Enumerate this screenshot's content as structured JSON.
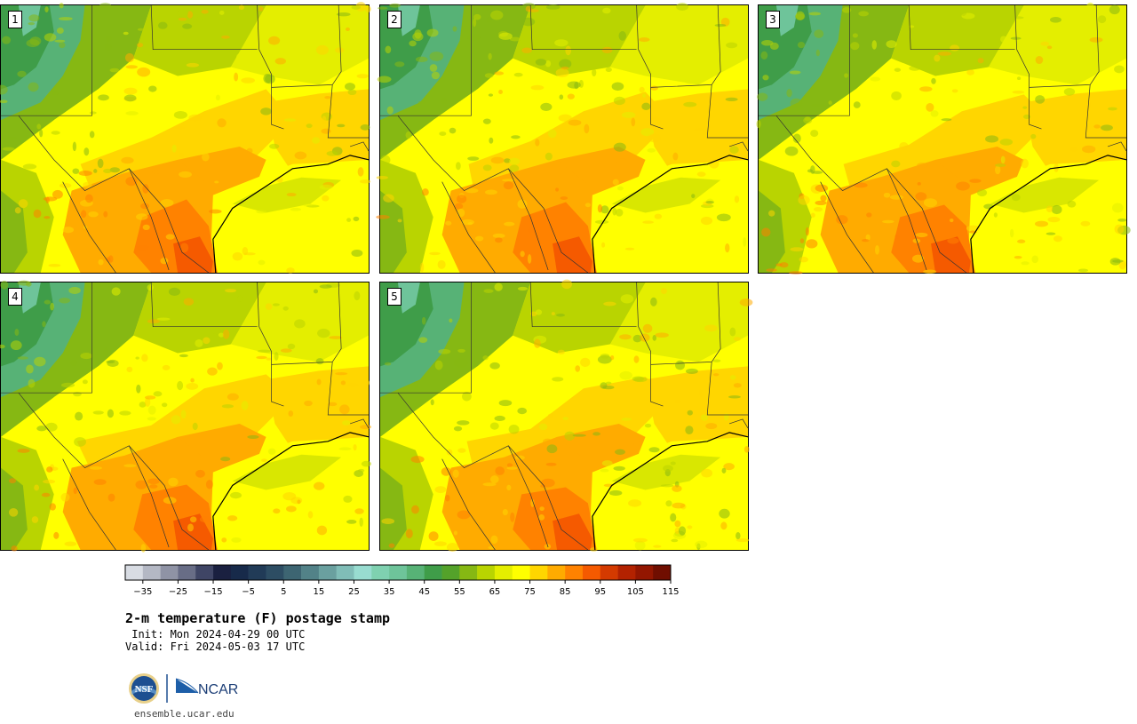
{
  "panels": [
    {
      "label": "1",
      "variant": 0
    },
    {
      "label": "2",
      "variant": 1
    },
    {
      "label": "3",
      "variant": 2
    },
    {
      "label": "4",
      "variant": 3
    },
    {
      "label": "5",
      "variant": 4
    }
  ],
  "colorbar": {
    "colors": [
      "#d8dce3",
      "#b4b8c4",
      "#8f93a5",
      "#686d86",
      "#3f4565",
      "#1a2040",
      "#172a4a",
      "#213b57",
      "#2d4d63",
      "#3d6572",
      "#528288",
      "#6aa09f",
      "#80bdb7",
      "#98dcd0",
      "#7fd1b0",
      "#6ec49a",
      "#57b276",
      "#3f9d49",
      "#54a22a",
      "#86b813",
      "#b9d401",
      "#e4ee00",
      "#ffff00",
      "#ffd600",
      "#ffab00",
      "#ff8200",
      "#f55a00",
      "#d43a00",
      "#b32200",
      "#931600",
      "#700e00"
    ],
    "ticks": [
      "−35",
      "−25",
      "−15",
      "−5",
      "5",
      "15",
      "25",
      "35",
      "45",
      "55",
      "65",
      "75",
      "85",
      "95",
      "105",
      "115"
    ]
  },
  "title": "2-m temperature (F) postage stamp",
  "init": " Init: Mon 2024-04-29 00 UTC",
  "valid": "Valid: Fri 2024-05-03 17 UTC",
  "logos": {
    "nsf": "NSF",
    "ncar": "NCAR"
  },
  "site": "ensemble.ucar.edu"
}
